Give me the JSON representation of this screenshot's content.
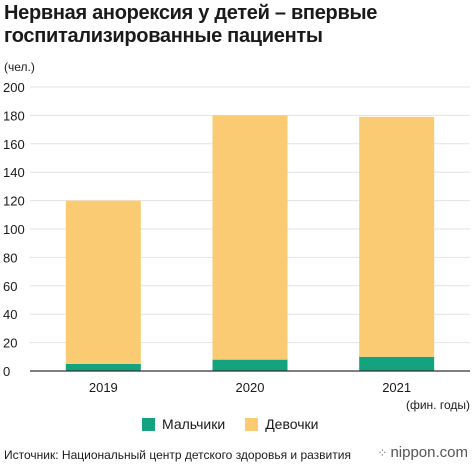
{
  "title_line1": "Нервная анорексия у детей – впервые",
  "title_line2": "госпитализированные пациенты",
  "unit_label": "(чел.)",
  "x_unit_label": "(фин. годы)",
  "source": "Источник: Национальный центр детского здоровья и развития",
  "brand": "nippon.com",
  "colors": {
    "boys": "#15a37f",
    "girls": "#fbcb74",
    "grid": "#e3e3e3",
    "axis": "#333333"
  },
  "chart_data": {
    "type": "bar",
    "stacked": true,
    "categories": [
      "2019",
      "2020",
      "2021"
    ],
    "series": [
      {
        "name": "Мальчики",
        "values": [
          5,
          8,
          10
        ]
      },
      {
        "name": "Девочки",
        "values": [
          115,
          172,
          169
        ]
      }
    ],
    "ylim": [
      0,
      200
    ],
    "yticks": [
      0,
      20,
      40,
      60,
      80,
      100,
      120,
      140,
      160,
      180,
      200
    ],
    "grid": true,
    "legend": "bottom"
  }
}
